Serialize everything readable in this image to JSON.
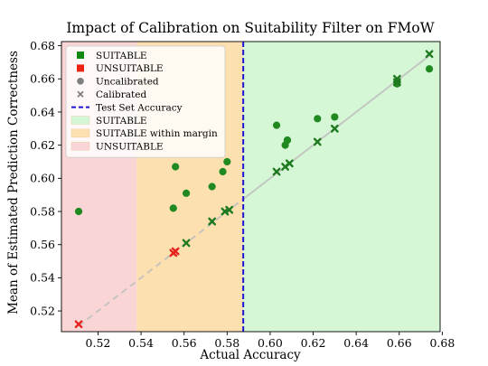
{
  "chart_data": {
    "type": "scatter",
    "title": "Impact of Calibration on Suitability Filter on FMoW",
    "xlabel": "Actual Accuracy",
    "ylabel": "Mean of Estimated Prediction Correctness",
    "xlim": [
      0.503,
      0.679
    ],
    "ylim": [
      0.5075,
      0.6825
    ],
    "x_ticks": [
      0.52,
      0.54,
      0.56,
      0.58,
      0.6,
      0.62,
      0.64,
      0.66,
      0.68
    ],
    "y_ticks": [
      0.52,
      0.54,
      0.56,
      0.58,
      0.6,
      0.62,
      0.64,
      0.66,
      0.68
    ],
    "x_tick_labels": [
      "0.52",
      "0.54",
      "0.56",
      "0.58",
      "0.60",
      "0.62",
      "0.64",
      "0.66",
      "0.68"
    ],
    "y_tick_labels": [
      "0.52",
      "0.54",
      "0.56",
      "0.58",
      "0.60",
      "0.62",
      "0.64",
      "0.66",
      "0.68"
    ],
    "test_set_accuracy": 0.5875,
    "margin_lower": 0.538,
    "regions": [
      {
        "key": "unsuitable",
        "x_from": "xmin",
        "x_to": "margin_lower",
        "color": "#f9d5d5"
      },
      {
        "key": "suitable_margin",
        "x_from": "margin_lower",
        "x_to": "test_set_accuracy",
        "color": "#fde0b0"
      },
      {
        "key": "suitable",
        "x_from": "test_set_accuracy",
        "x_to": "xmax",
        "color": "#d5f7d5"
      }
    ],
    "colors": {
      "suitable_marker": "#2ca02c",
      "unsuitable_marker": "#e8221c",
      "uncalibrated_marker": "#208a20",
      "calibrated_marker": "#1f7a1f",
      "test_line": "#1f14d6",
      "diagonal": "#bfbfbf",
      "legend_suitable_square": "#118811",
      "legend_unsuitable_square": "#ee2211",
      "legend_neutral": "#7f7f7f"
    },
    "uncalibrated_points": [
      {
        "x": 0.511,
        "y": 0.58,
        "status": "suitable"
      },
      {
        "x": 0.555,
        "y": 0.582,
        "status": "suitable"
      },
      {
        "x": 0.556,
        "y": 0.607,
        "status": "suitable"
      },
      {
        "x": 0.561,
        "y": 0.591,
        "status": "suitable"
      },
      {
        "x": 0.573,
        "y": 0.595,
        "status": "suitable"
      },
      {
        "x": 0.578,
        "y": 0.604,
        "status": "suitable"
      },
      {
        "x": 0.58,
        "y": 0.61,
        "status": "suitable"
      },
      {
        "x": 0.603,
        "y": 0.632,
        "status": "suitable"
      },
      {
        "x": 0.607,
        "y": 0.62,
        "status": "suitable"
      },
      {
        "x": 0.608,
        "y": 0.623,
        "status": "suitable"
      },
      {
        "x": 0.608,
        "y": 0.623,
        "status": "suitable"
      },
      {
        "x": 0.622,
        "y": 0.636,
        "status": "suitable"
      },
      {
        "x": 0.63,
        "y": 0.637,
        "status": "suitable"
      },
      {
        "x": 0.659,
        "y": 0.657,
        "status": "suitable"
      },
      {
        "x": 0.659,
        "y": 0.658,
        "status": "suitable"
      },
      {
        "x": 0.674,
        "y": 0.666,
        "status": "suitable"
      }
    ],
    "calibrated_points": [
      {
        "x": 0.511,
        "y": 0.512,
        "status": "unsuitable"
      },
      {
        "x": 0.555,
        "y": 0.555,
        "status": "unsuitable"
      },
      {
        "x": 0.556,
        "y": 0.556,
        "status": "unsuitable"
      },
      {
        "x": 0.561,
        "y": 0.561,
        "status": "suitable"
      },
      {
        "x": 0.573,
        "y": 0.574,
        "status": "suitable"
      },
      {
        "x": 0.579,
        "y": 0.58,
        "status": "suitable"
      },
      {
        "x": 0.581,
        "y": 0.581,
        "status": "suitable"
      },
      {
        "x": 0.603,
        "y": 0.604,
        "status": "suitable"
      },
      {
        "x": 0.607,
        "y": 0.607,
        "status": "suitable"
      },
      {
        "x": 0.609,
        "y": 0.609,
        "status": "suitable"
      },
      {
        "x": 0.622,
        "y": 0.622,
        "status": "suitable"
      },
      {
        "x": 0.63,
        "y": 0.63,
        "status": "suitable"
      },
      {
        "x": 0.659,
        "y": 0.658,
        "status": "suitable"
      },
      {
        "x": 0.659,
        "y": 0.66,
        "status": "suitable"
      },
      {
        "x": 0.674,
        "y": 0.675,
        "status": "suitable"
      }
    ],
    "diagonal_x_range": [
      0.511,
      0.674
    ],
    "diagonal_dashed_until": 0.5875,
    "legend": {
      "placement": "top-left",
      "entries": [
        {
          "label": "SUITABLE",
          "kind": "square",
          "color_key": "legend_suitable_square"
        },
        {
          "label": "UNSUITABLE",
          "kind": "square",
          "color_key": "legend_unsuitable_square"
        },
        {
          "label": "Uncalibrated",
          "kind": "circle",
          "color_key": "legend_neutral"
        },
        {
          "label": "Calibrated",
          "kind": "cross",
          "color_key": "legend_neutral"
        },
        {
          "label": "Test Set Accuracy",
          "kind": "dashline",
          "color_key": "test_line"
        },
        {
          "label": "SUITABLE",
          "kind": "patch",
          "color_key": "suitable"
        },
        {
          "label": "SUITABLE within margin",
          "kind": "patch",
          "color_key": "suitable_margin"
        },
        {
          "label": "UNSUITABLE",
          "kind": "patch",
          "color_key": "unsuitable"
        }
      ]
    }
  }
}
